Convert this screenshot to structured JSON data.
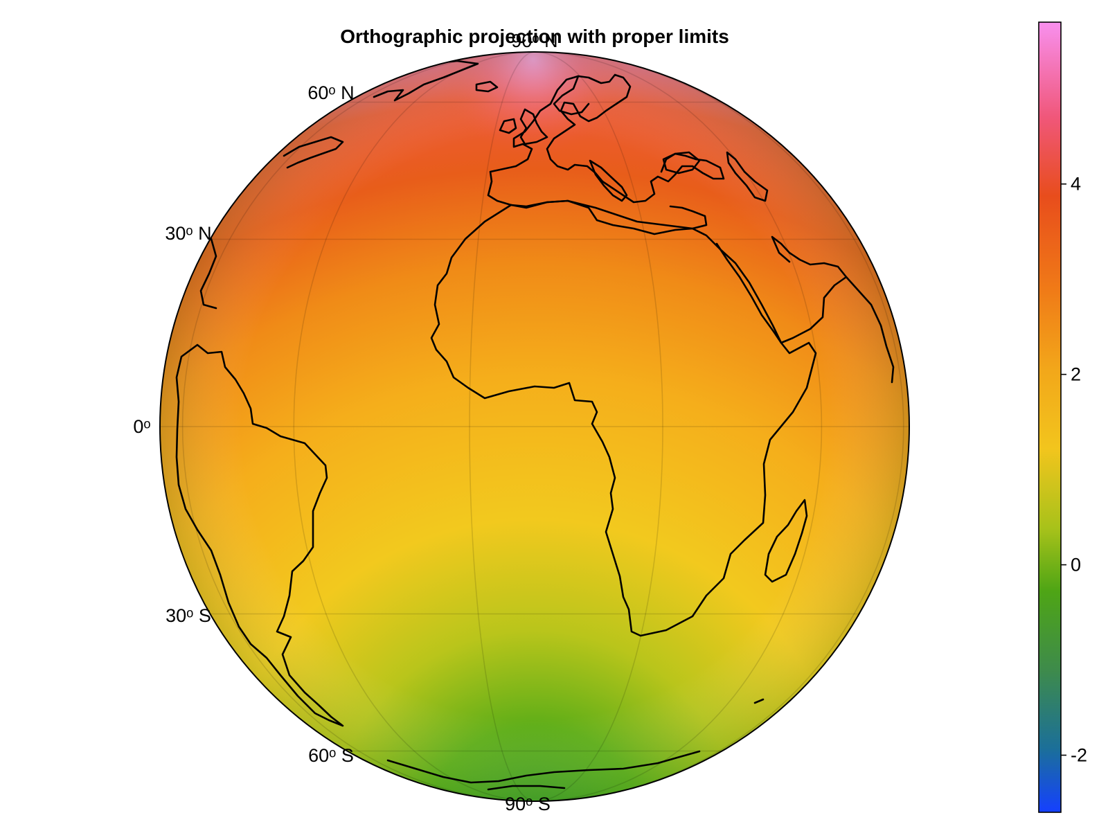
{
  "title": "Orthographic projection with proper limits",
  "projection": "orthographic",
  "center": {
    "lon": 10,
    "lat": 0
  },
  "latitude_labels": [
    "90ᵒ N",
    "60ᵒ N",
    "30ᵒ N",
    "0ᵒ",
    "30ᵒ S",
    "60ᵒ S",
    "90ᵒ S"
  ],
  "graticule": {
    "lat_step_deg": 30,
    "lon_step_deg": 30
  },
  "colorbar": {
    "ticks": [
      "4",
      "2",
      "0",
      "-2"
    ],
    "tick_values": [
      4,
      2,
      0,
      -2
    ],
    "range": [
      -2.6,
      5.7
    ],
    "colors": [
      "#1540ff",
      "#1b6f9a",
      "#3e8b4b",
      "#4ea515",
      "#a8c21a",
      "#f2c51d",
      "#f2a71a",
      "#f07b17",
      "#e84d1c",
      "#f0577a",
      "#f890ee"
    ]
  },
  "regions_shown": [
    "Africa",
    "Europe",
    "South America",
    "Arabia",
    "Madagascar",
    "Antarctica"
  ]
}
